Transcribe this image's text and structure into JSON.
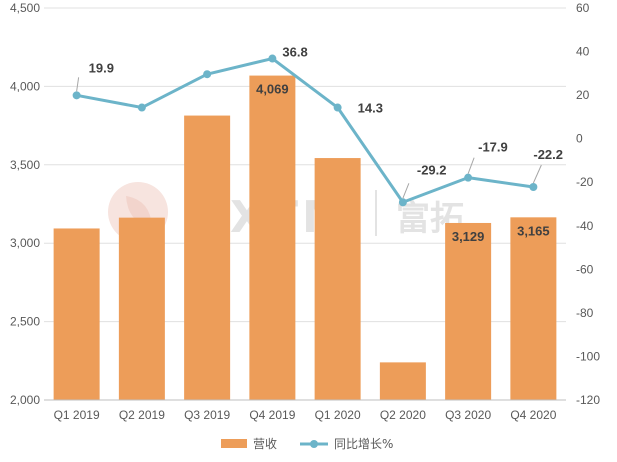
{
  "watermark": {
    "brand": "FXTM",
    "cn": "富拓"
  },
  "chart_data": {
    "type": "bar+line",
    "categories": [
      "Q1 2019",
      "Q2 2019",
      "Q3 2019",
      "Q4 2019",
      "Q1 2020",
      "Q2 2020",
      "Q3 2020",
      "Q4 2020"
    ],
    "series": [
      {
        "name": "营收",
        "type": "bar",
        "axis": "left",
        "color": "#ED9D59",
        "values": [
          3094,
          3163,
          3814,
          4069,
          3543,
          2240,
          3129,
          3165
        ]
      },
      {
        "name": "同比增长%",
        "type": "line",
        "axis": "right",
        "color": "#6CB4C9",
        "values": [
          19.9,
          14.3,
          29.6,
          36.8,
          14.3,
          -29.2,
          -17.9,
          -22.2
        ]
      }
    ],
    "y_left": {
      "min": 2000,
      "max": 4500,
      "step": 500,
      "ticks": [
        "2,000",
        "2,500",
        "3,000",
        "3,500",
        "4,000",
        "4,500"
      ]
    },
    "y_right": {
      "min": -120,
      "max": 60,
      "step": 20,
      "ticks": [
        "-120",
        "-100",
        "-80",
        "-60",
        "-40",
        "-20",
        "0",
        "20",
        "40",
        "60"
      ]
    },
    "bar_labels": [
      {
        "index": 3,
        "text": "4,069"
      },
      {
        "index": 6,
        "text": "3,129"
      },
      {
        "index": 7,
        "text": "3,165"
      }
    ],
    "line_labels": [
      {
        "index": 0,
        "text": "19.9",
        "leader": true
      },
      {
        "index": 3,
        "text": "36.8",
        "leader": false
      },
      {
        "index": 4,
        "text": "14.3",
        "leader": false
      },
      {
        "index": 5,
        "text": "-29.2",
        "leader": true
      },
      {
        "index": 6,
        "text": "-17.9",
        "leader": true
      },
      {
        "index": 7,
        "text": "-22.2",
        "leader": true
      }
    ],
    "grid": true,
    "legend_position": "bottom"
  }
}
